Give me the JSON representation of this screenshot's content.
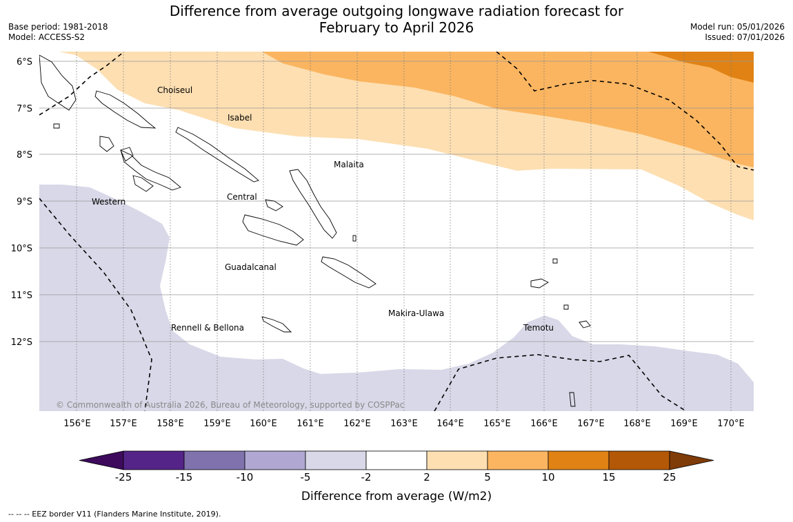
{
  "header": {
    "title_line1": "Difference from average outgoing longwave radiation forecast for",
    "title_line2": "February to April 2026",
    "base_period": "Base period: 1981-2018",
    "model": "Model: ACCESS-S2",
    "model_run": "Model run: 05/01/2026",
    "issued": "Issued: 07/01/2026"
  },
  "map": {
    "lat_labels": [
      "6°S",
      "7°S",
      "8°S",
      "9°S",
      "10°S",
      "11°S",
      "12°S"
    ],
    "lon_labels": [
      "156°E",
      "157°E",
      "158°E",
      "159°E",
      "160°E",
      "161°E",
      "162°E",
      "163°E",
      "164°E",
      "165°E",
      "166°E",
      "167°E",
      "168°E",
      "169°E",
      "170°E"
    ],
    "regions": [
      "Choiseul",
      "Isabel",
      "Malaita",
      "Western",
      "Central",
      "Guadalcanal",
      "Makira-Ulawa",
      "Rennell & Bellona",
      "Temotu"
    ],
    "copyright": "© Commonwealth of Australia 2026, Bureau of Meteorology, supported by COSPPac"
  },
  "colorbar": {
    "ticks": [
      "-25",
      "-15",
      "-10",
      "-5",
      "-2",
      "2",
      "5",
      "10",
      "15",
      "25"
    ],
    "colors": [
      "#3d0a5c",
      "#542489",
      "#8073ad",
      "#b0a8d2",
      "#d8d8e8",
      "#ffffff",
      "#fddfb2",
      "#fbb560",
      "#e08214",
      "#b35806",
      "#7f3b08"
    ],
    "label": "Difference from average (W/m2)"
  },
  "footnote": "--  --  -- EEZ border V11 (Flanders Marine Institute, 2019)."
}
